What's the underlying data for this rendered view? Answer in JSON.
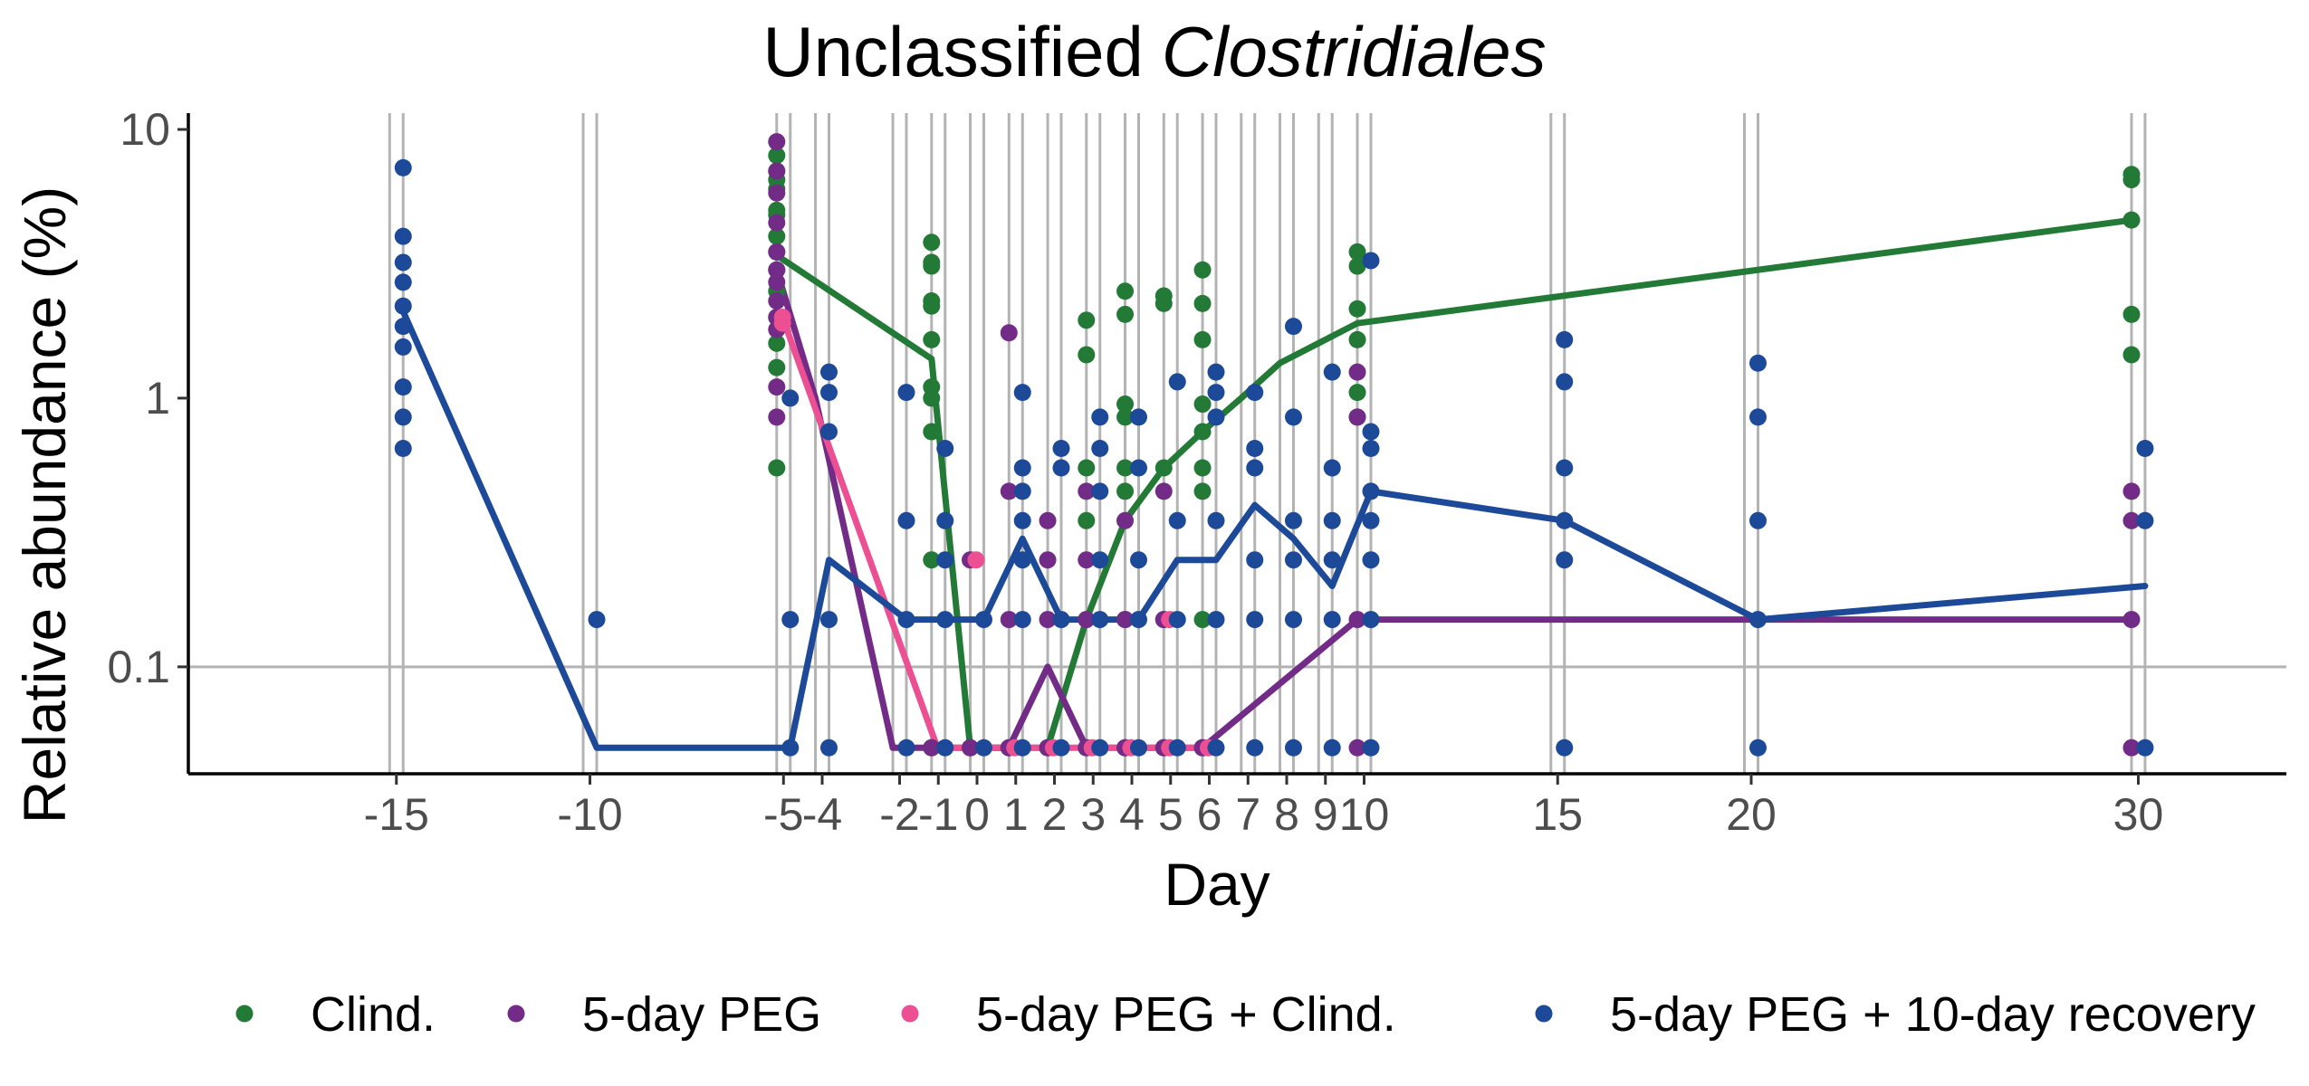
{
  "chart_data": {
    "type": "scatter",
    "title": "Unclassified",
    "title_italic": "Clostridiales",
    "xlabel": "Day",
    "ylabel": "Relative abundance (%)",
    "y_scale": "log10",
    "ylim": [
      0.04,
      11.5
    ],
    "xlim": [
      -20.2,
      34
    ],
    "x_tick_labels": [
      "-15",
      "-10",
      "-5",
      "-4",
      "-2",
      "-1",
      "0",
      "1",
      "2",
      "3",
      "4",
      "5",
      "6",
      "7",
      "8",
      "9",
      "10",
      "15",
      "20",
      "30"
    ],
    "y_tick_labels": [
      "0.1",
      "1",
      "10"
    ],
    "y_ticks": [
      0.1,
      1,
      10
    ],
    "grid": "vertical lines at sampled days, horizontal line at 0.1",
    "legend_position": "bottom",
    "series": [
      {
        "name": "Clind.",
        "color": "#237a36",
        "offset": 0,
        "line": [
          [
            -5,
            3.4
          ],
          [
            -1,
            1.4
          ],
          [
            0,
            0.05
          ],
          [
            1,
            0.05
          ],
          [
            2,
            0.05
          ],
          [
            3,
            0.15
          ],
          [
            4,
            0.35
          ],
          [
            5,
            0.55
          ],
          [
            6,
            0.75
          ],
          [
            7,
            1.0
          ],
          [
            8,
            1.35
          ],
          [
            10,
            1.9
          ],
          [
            30,
            4.6
          ]
        ],
        "points": [
          [
            -5,
            8
          ],
          [
            -5,
            7
          ],
          [
            -5,
            6.5
          ],
          [
            -5,
            6
          ],
          [
            -5,
            5
          ],
          [
            -5,
            4.8
          ],
          [
            -5,
            4
          ],
          [
            -5,
            3.5
          ],
          [
            -5,
            3
          ],
          [
            -5,
            2.5
          ],
          [
            -5,
            2
          ],
          [
            -5,
            1.6
          ],
          [
            -5,
            1.3
          ],
          [
            -5,
            0.55
          ],
          [
            -1,
            3.8
          ],
          [
            -1,
            3.2
          ],
          [
            -1,
            3.1
          ],
          [
            -1,
            2.3
          ],
          [
            -1,
            2.2
          ],
          [
            -1,
            1.65
          ],
          [
            -1,
            1.1
          ],
          [
            -1,
            1.0
          ],
          [
            -1,
            0.75
          ],
          [
            -1,
            0.25
          ],
          [
            -1,
            0.05
          ],
          [
            0,
            0.05
          ],
          [
            1,
            0.05
          ],
          [
            2,
            0.05
          ],
          [
            3,
            1.95
          ],
          [
            3,
            1.45
          ],
          [
            3,
            0.55
          ],
          [
            3,
            0.35
          ],
          [
            3,
            0.15
          ],
          [
            3,
            0.05
          ],
          [
            4,
            2.5
          ],
          [
            4,
            2.05
          ],
          [
            4,
            0.95
          ],
          [
            4,
            0.85
          ],
          [
            4,
            0.55
          ],
          [
            4,
            0.45
          ],
          [
            4,
            0.15
          ],
          [
            4,
            0.05
          ],
          [
            5,
            2.4
          ],
          [
            5,
            2.25
          ],
          [
            5,
            0.55
          ],
          [
            5,
            0.15
          ],
          [
            5,
            0.05
          ],
          [
            6,
            3.0
          ],
          [
            6,
            2.25
          ],
          [
            6,
            1.65
          ],
          [
            6,
            0.95
          ],
          [
            6,
            0.75
          ],
          [
            6,
            0.55
          ],
          [
            6,
            0.45
          ],
          [
            6,
            0.15
          ],
          [
            6,
            0.05
          ],
          [
            10,
            3.5
          ],
          [
            10,
            3.1
          ],
          [
            10,
            2.15
          ],
          [
            10,
            1.65
          ],
          [
            10,
            1.05
          ],
          [
            10,
            0.85
          ],
          [
            30,
            6.8
          ],
          [
            30,
            6.5
          ],
          [
            30,
            4.6
          ],
          [
            30,
            2.05
          ],
          [
            30,
            1.45
          ]
        ]
      },
      {
        "name": "5-day PEG",
        "color": "#722b86",
        "offset": 0,
        "line": [
          [
            -5,
            3.0
          ],
          [
            -4,
            1.0
          ],
          [
            -2,
            0.05
          ],
          [
            -1,
            0.05
          ],
          [
            0,
            0.05
          ],
          [
            1,
            0.05
          ],
          [
            2,
            0.1
          ],
          [
            3,
            0.05
          ],
          [
            4,
            0.05
          ],
          [
            5,
            0.05
          ],
          [
            6,
            0.05
          ],
          [
            10,
            0.15
          ],
          [
            30,
            0.15
          ]
        ],
        "points": [
          [
            -5,
            9
          ],
          [
            -5,
            7
          ],
          [
            -5,
            5.8
          ],
          [
            -5,
            4.5
          ],
          [
            -5,
            3.5
          ],
          [
            -5,
            3
          ],
          [
            -5,
            2.7
          ],
          [
            -5,
            2.3
          ],
          [
            -5,
            2
          ],
          [
            -5,
            1.8
          ],
          [
            -5,
            1.1
          ],
          [
            -5,
            0.85
          ],
          [
            -1,
            0.05
          ],
          [
            0,
            0.05
          ],
          [
            0,
            0.25
          ],
          [
            1,
            1.75
          ],
          [
            1,
            0.45
          ],
          [
            1,
            0.15
          ],
          [
            1,
            0.05
          ],
          [
            2,
            0.35
          ],
          [
            2,
            0.25
          ],
          [
            2,
            0.15
          ],
          [
            2,
            0.05
          ],
          [
            3,
            0.45
          ],
          [
            3,
            0.25
          ],
          [
            3,
            0.15
          ],
          [
            3,
            0.05
          ],
          [
            4,
            0.35
          ],
          [
            4,
            0.15
          ],
          [
            4,
            0.05
          ],
          [
            5,
            0.45
          ],
          [
            5,
            0.15
          ],
          [
            5,
            0.05
          ],
          [
            6,
            0.05
          ],
          [
            10,
            1.25
          ],
          [
            10,
            0.85
          ],
          [
            10,
            0.15
          ],
          [
            10,
            0.05
          ],
          [
            30,
            0.45
          ],
          [
            30,
            0.35
          ],
          [
            30,
            0.15
          ],
          [
            30,
            0.05
          ]
        ]
      },
      {
        "name": "5-day PEG + Clind.",
        "color": "#ec4f92",
        "offset": 0.15,
        "line": [
          [
            -5,
            2.0
          ],
          [
            -1,
            0.05
          ],
          [
            0,
            0.05
          ],
          [
            1,
            0.05
          ],
          [
            2,
            0.05
          ],
          [
            3,
            0.05
          ],
          [
            4,
            0.05
          ],
          [
            5,
            0.05
          ],
          [
            6,
            0.05
          ]
        ],
        "points": [
          [
            -5,
            2.0
          ],
          [
            -5,
            1.9
          ],
          [
            0,
            0.25
          ],
          [
            1,
            0.05
          ],
          [
            2,
            0.05
          ],
          [
            3,
            0.05
          ],
          [
            4,
            0.05
          ],
          [
            5,
            0.15
          ],
          [
            5,
            0.05
          ],
          [
            6,
            0.05
          ]
        ]
      },
      {
        "name": "5-day PEG + 10-day recovery",
        "color": "#1d4a98",
        "offset": 0.35,
        "line": [
          [
            -15,
            2.1
          ],
          [
            -10,
            0.05
          ],
          [
            -5,
            0.05
          ],
          [
            -4,
            0.25
          ],
          [
            -2,
            0.15
          ],
          [
            -1,
            0.15
          ],
          [
            0,
            0.15
          ],
          [
            1,
            0.3
          ],
          [
            2,
            0.15
          ],
          [
            3,
            0.15
          ],
          [
            4,
            0.15
          ],
          [
            5,
            0.25
          ],
          [
            6,
            0.25
          ],
          [
            7,
            0.4
          ],
          [
            8,
            0.3
          ],
          [
            9,
            0.2
          ],
          [
            10,
            0.45
          ],
          [
            15,
            0.35
          ],
          [
            20,
            0.15
          ],
          [
            30,
            0.2
          ]
        ],
        "points": [
          [
            -15,
            7.2
          ],
          [
            -15,
            4.0
          ],
          [
            -15,
            3.2
          ],
          [
            -15,
            2.7
          ],
          [
            -15,
            2.2
          ],
          [
            -15,
            1.85
          ],
          [
            -15,
            1.55
          ],
          [
            -15,
            1.1
          ],
          [
            -15,
            0.85
          ],
          [
            -15,
            0.65
          ],
          [
            -10,
            0.15
          ],
          [
            -5,
            1.0
          ],
          [
            -5,
            0.15
          ],
          [
            -5,
            0.05
          ],
          [
            -4,
            1.25
          ],
          [
            -4,
            1.05
          ],
          [
            -4,
            0.75
          ],
          [
            -4,
            0.15
          ],
          [
            -4,
            0.05
          ],
          [
            -2,
            1.05
          ],
          [
            -2,
            0.35
          ],
          [
            -2,
            0.15
          ],
          [
            -2,
            0.05
          ],
          [
            -1,
            0.65
          ],
          [
            -1,
            0.35
          ],
          [
            -1,
            0.25
          ],
          [
            -1,
            0.15
          ],
          [
            -1,
            0.05
          ],
          [
            0,
            0.15
          ],
          [
            0,
            0.05
          ],
          [
            1,
            1.05
          ],
          [
            1,
            0.55
          ],
          [
            1,
            0.45
          ],
          [
            1,
            0.35
          ],
          [
            1,
            0.25
          ],
          [
            1,
            0.15
          ],
          [
            1,
            0.05
          ],
          [
            2,
            0.65
          ],
          [
            2,
            0.55
          ],
          [
            2,
            0.15
          ],
          [
            2,
            0.05
          ],
          [
            3,
            0.85
          ],
          [
            3,
            0.65
          ],
          [
            3,
            0.45
          ],
          [
            3,
            0.25
          ],
          [
            3,
            0.15
          ],
          [
            3,
            0.05
          ],
          [
            4,
            0.85
          ],
          [
            4,
            0.55
          ],
          [
            4,
            0.25
          ],
          [
            4,
            0.15
          ],
          [
            4,
            0.05
          ],
          [
            5,
            1.15
          ],
          [
            5,
            0.35
          ],
          [
            5,
            0.15
          ],
          [
            5,
            0.05
          ],
          [
            6,
            1.25
          ],
          [
            6,
            1.05
          ],
          [
            6,
            0.85
          ],
          [
            6,
            0.35
          ],
          [
            6,
            0.15
          ],
          [
            6,
            0.05
          ],
          [
            7,
            1.05
          ],
          [
            7,
            0.65
          ],
          [
            7,
            0.55
          ],
          [
            7,
            0.25
          ],
          [
            7,
            0.15
          ],
          [
            7,
            0.05
          ],
          [
            8,
            1.85
          ],
          [
            8,
            0.85
          ],
          [
            8,
            0.35
          ],
          [
            8,
            0.25
          ],
          [
            8,
            0.15
          ],
          [
            8,
            0.05
          ],
          [
            9,
            1.25
          ],
          [
            9,
            0.55
          ],
          [
            9,
            0.35
          ],
          [
            9,
            0.25
          ],
          [
            9,
            0.15
          ],
          [
            9,
            0.05
          ],
          [
            10,
            3.25
          ],
          [
            10,
            0.75
          ],
          [
            10,
            0.65
          ],
          [
            10,
            0.45
          ],
          [
            10,
            0.35
          ],
          [
            10,
            0.25
          ],
          [
            10,
            0.15
          ],
          [
            10,
            0.05
          ],
          [
            15,
            1.65
          ],
          [
            15,
            1.15
          ],
          [
            15,
            0.55
          ],
          [
            15,
            0.35
          ],
          [
            15,
            0.25
          ],
          [
            15,
            0.05
          ],
          [
            20,
            1.35
          ],
          [
            20,
            0.85
          ],
          [
            20,
            0.35
          ],
          [
            20,
            0.15
          ],
          [
            20,
            0.05
          ],
          [
            30,
            0.65
          ],
          [
            30,
            0.35
          ],
          [
            30,
            0.05
          ]
        ]
      }
    ]
  }
}
